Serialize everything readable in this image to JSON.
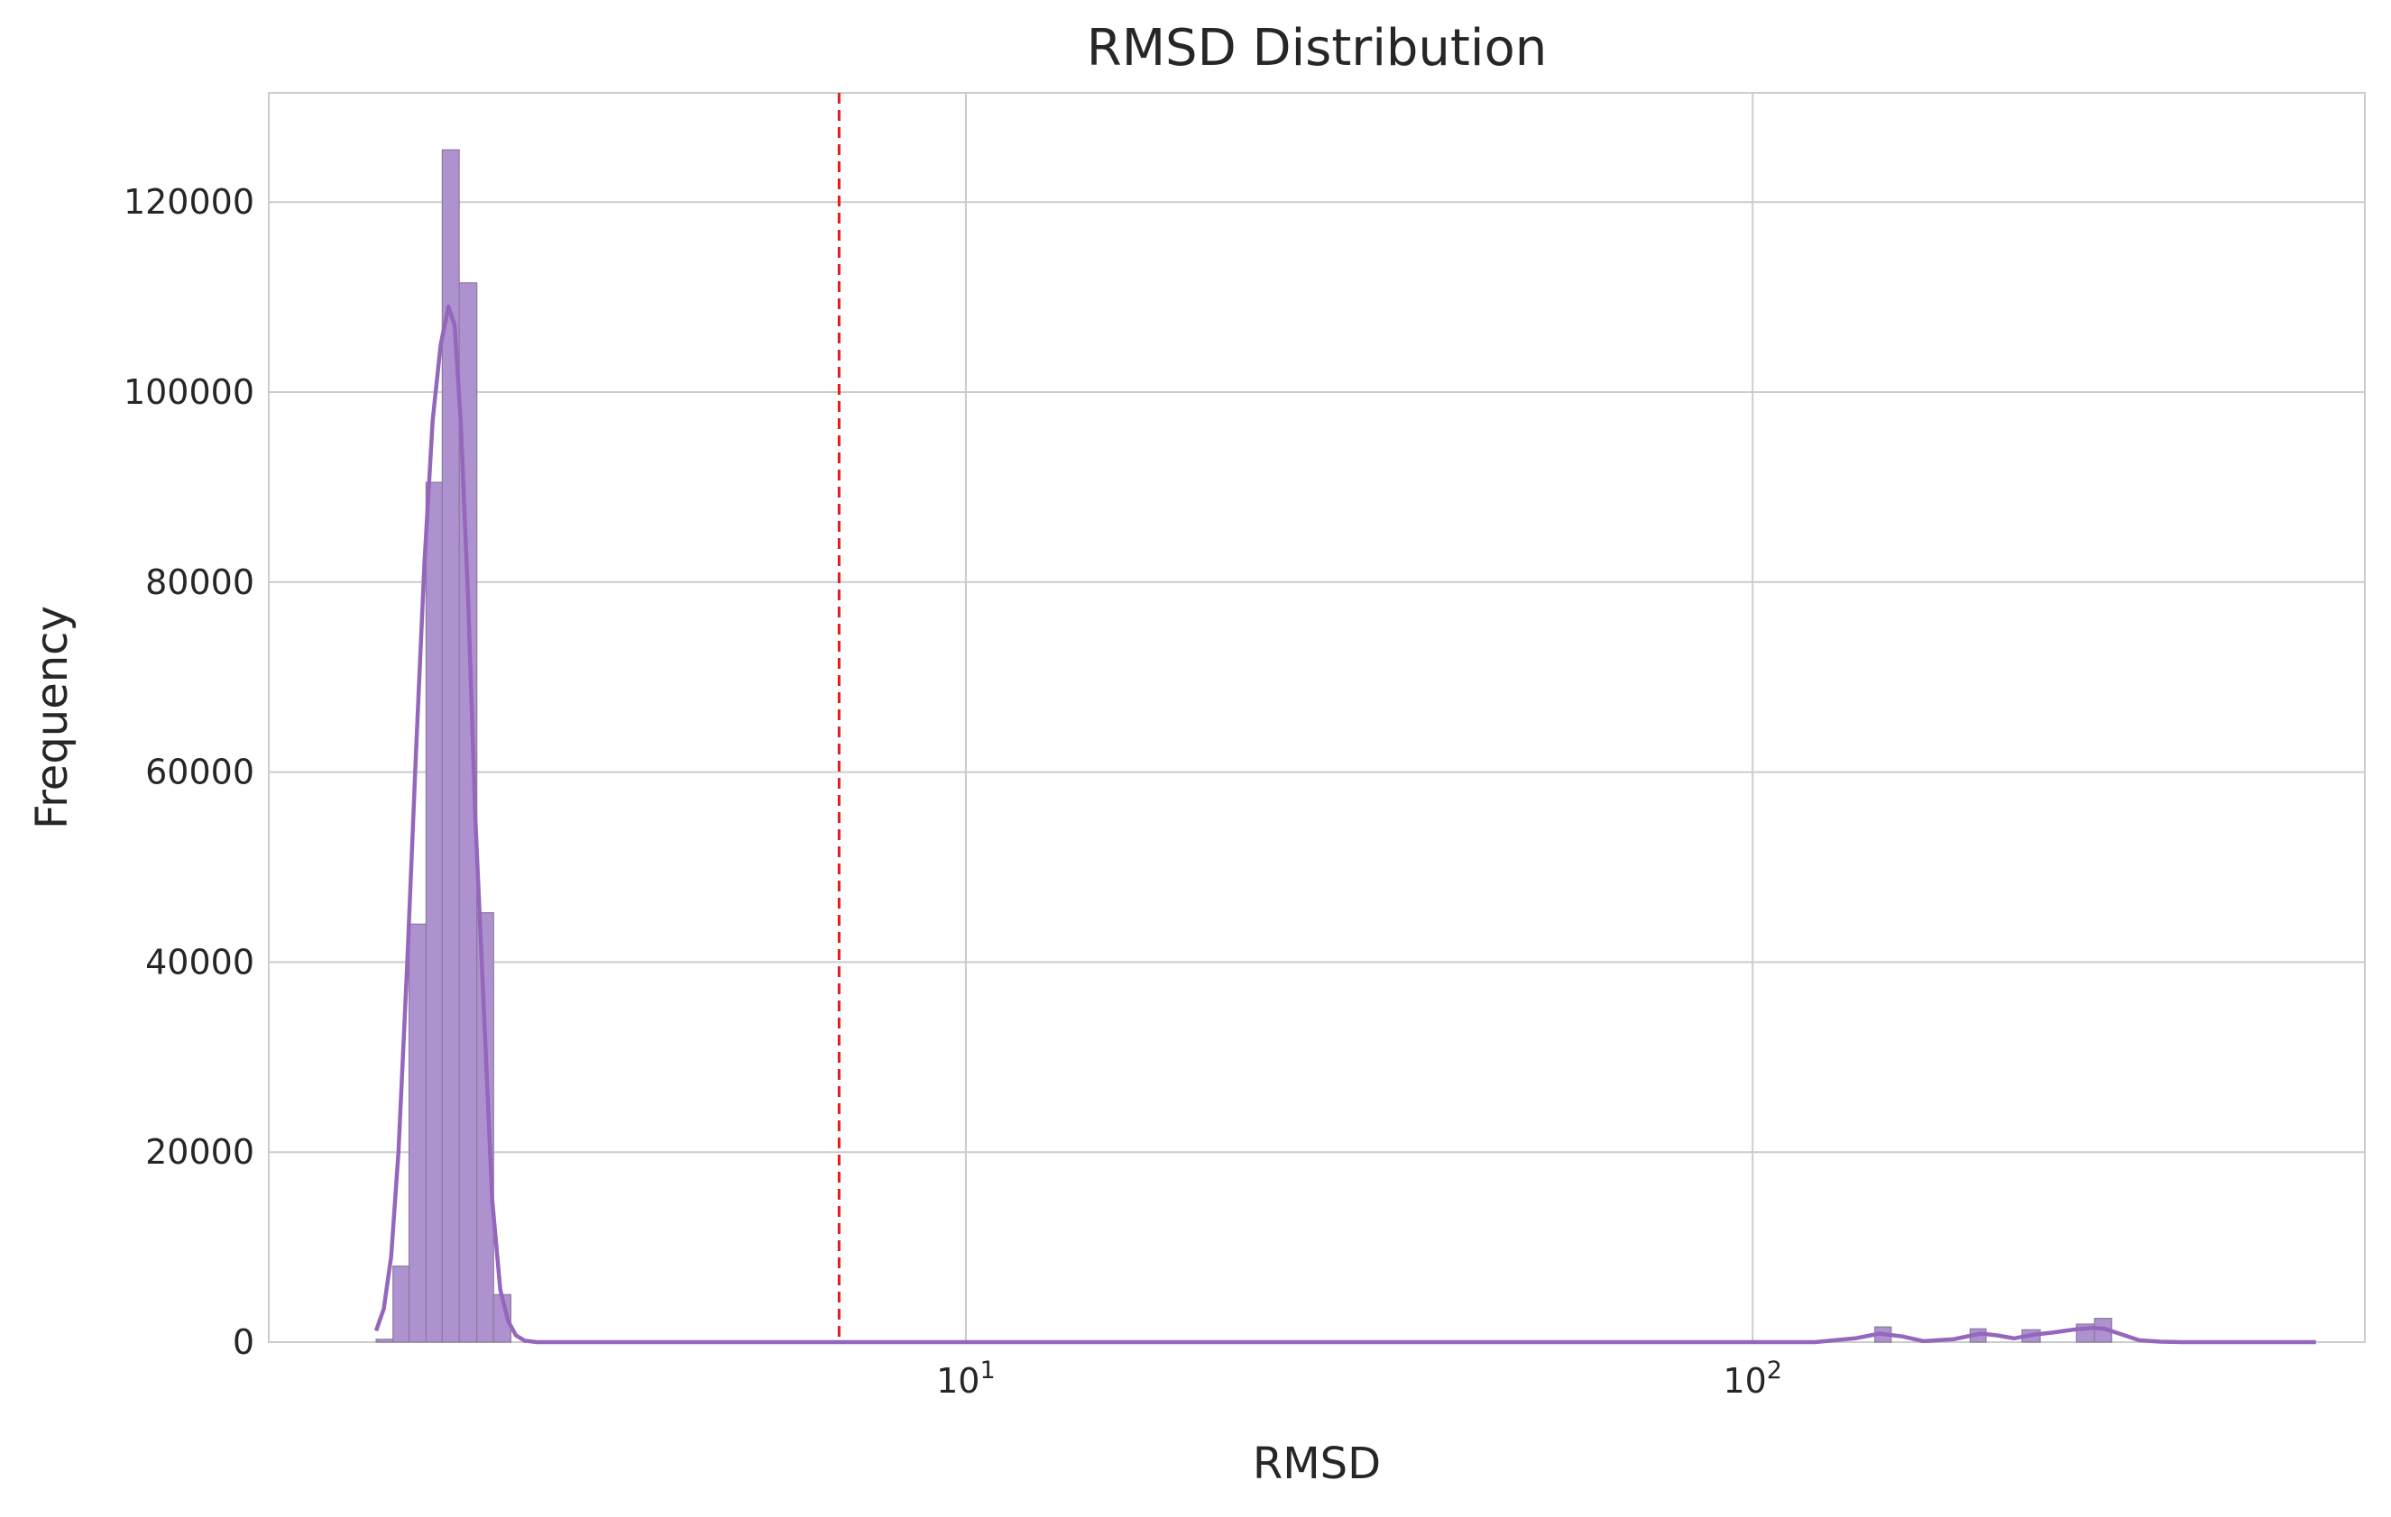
{
  "chart_data": {
    "type": "bar",
    "title": "RMSD Distribution",
    "xlabel": "RMSD",
    "ylabel": "Frequency",
    "x_scale": "log",
    "xlim": [
      1.3,
      600
    ],
    "ylim": [
      0,
      131500
    ],
    "grid": true,
    "x_ticks": [
      {
        "value": 10,
        "base": "10",
        "exp": "1"
      },
      {
        "value": 100,
        "base": "10",
        "exp": "2"
      }
    ],
    "y_ticks": [
      {
        "value": 0,
        "label": "0"
      },
      {
        "value": 20000,
        "label": "20000"
      },
      {
        "value": 40000,
        "label": "40000"
      },
      {
        "value": 60000,
        "label": "60000"
      },
      {
        "value": 80000,
        "label": "80000"
      },
      {
        "value": 100000,
        "label": "100000"
      },
      {
        "value": 120000,
        "label": "120000"
      }
    ],
    "bins": [
      {
        "x0": 1.78,
        "x1": 1.87,
        "count": 300
      },
      {
        "x0": 1.87,
        "x1": 1.96,
        "count": 8000
      },
      {
        "x0": 1.96,
        "x1": 2.06,
        "count": 44000
      },
      {
        "x0": 2.06,
        "x1": 2.16,
        "count": 90500
      },
      {
        "x0": 2.16,
        "x1": 2.27,
        "count": 125500
      },
      {
        "x0": 2.27,
        "x1": 2.39,
        "count": 111500
      },
      {
        "x0": 2.39,
        "x1": 2.51,
        "count": 45200
      },
      {
        "x0": 2.51,
        "x1": 2.64,
        "count": 5000
      },
      {
        "x0": 143,
        "x1": 150,
        "count": 1600
      },
      {
        "x0": 189,
        "x1": 198,
        "count": 1400
      },
      {
        "x0": 220,
        "x1": 232,
        "count": 1300
      },
      {
        "x0": 258,
        "x1": 272,
        "count": 1900
      },
      {
        "x0": 272,
        "x1": 286,
        "count": 2500
      }
    ],
    "kde": {
      "x": [
        1.78,
        1.82,
        1.86,
        1.9,
        1.95,
        2.0,
        2.05,
        2.1,
        2.15,
        2.2,
        2.24,
        2.28,
        2.33,
        2.38,
        2.44,
        2.5,
        2.56,
        2.62,
        2.68,
        2.75,
        2.85,
        3.0,
        4.0,
        10,
        50,
        120,
        135,
        145,
        155,
        165,
        180,
        195,
        205,
        215,
        228,
        240,
        255,
        270,
        280,
        295,
        310,
        330,
        350,
        450,
        520
      ],
      "y": [
        1200,
        3500,
        9000,
        20000,
        40000,
        62000,
        82000,
        97000,
        105000,
        109000,
        107000,
        97000,
        78000,
        55000,
        35000,
        15000,
        5500,
        2200,
        700,
        150,
        0,
        0,
        0,
        0,
        0,
        0,
        400,
        900,
        600,
        100,
        300,
        900,
        700,
        400,
        800,
        1000,
        1300,
        1500,
        1400,
        800,
        200,
        50,
        0,
        0,
        0
      ]
    },
    "threshold_line": {
      "x": 6.9,
      "style": "dashed",
      "color": "#e41a1c"
    },
    "colors": {
      "bar_fill": "#ae92cf",
      "bar_edge": "#8a7a9c",
      "kde_line": "#9467bd",
      "grid": "#cccccc",
      "axis_text": "#262626"
    }
  }
}
